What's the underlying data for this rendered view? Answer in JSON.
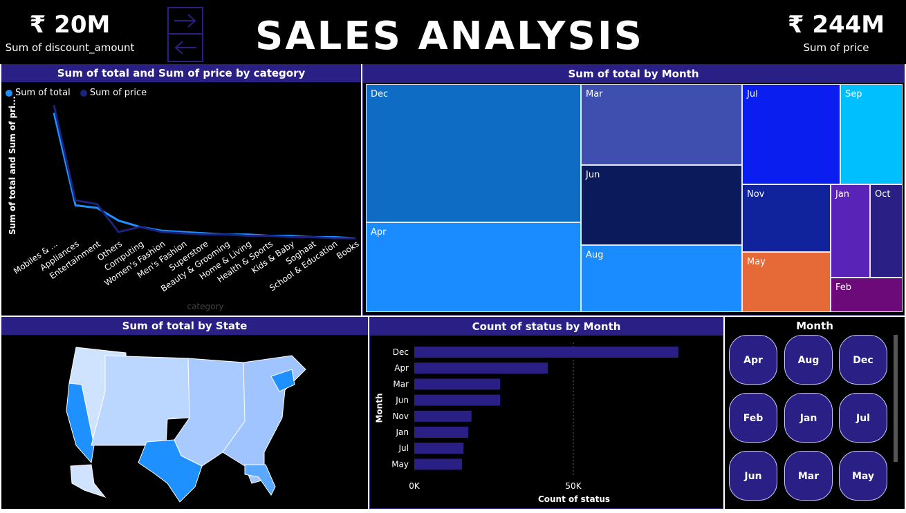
{
  "kpi_left": {
    "value": "₹ 20M",
    "label": "Sum of discount_amount"
  },
  "kpi_right": {
    "value": "₹ 244M",
    "label": "Sum of price"
  },
  "title": "SALES ANALYSIS",
  "colors": {
    "header": "#2a1f85",
    "background": "#000000",
    "series_total": "#1e90ff",
    "series_price": "#1a237e"
  },
  "line_chart": {
    "title": "Sum of total and Sum of price by category",
    "ylabel": "Sum of total and Sum of pri...",
    "xlabel": "category",
    "legend": [
      "Sum of total",
      "Sum of price"
    ]
  },
  "treemap": {
    "title": "Sum of total by Month"
  },
  "map": {
    "title": "Sum of total by State"
  },
  "bar_chart": {
    "title": "Count of status by Month",
    "ylabel": "Month",
    "xlabel": "Count of status"
  },
  "slicer": {
    "title": "Month",
    "options": [
      "Apr",
      "Aug",
      "Dec",
      "Feb",
      "Jan",
      "Jul",
      "Jun",
      "Mar",
      "May"
    ]
  },
  "chart_data": [
    {
      "type": "line",
      "title": "Sum of total and Sum of price by category",
      "xlabel": "category",
      "ylabel": "Sum of total and Sum of pri...",
      "categories": [
        "Mobiles & ...",
        "Appliances",
        "Entertainment",
        "Others",
        "Computing",
        "Women's Fashion",
        "Men's Fashion",
        "Superstore",
        "Beauty & Grooming",
        "Home & Living",
        "Health & Sports",
        "Kids & Baby",
        "Soghaat",
        "School & Education",
        "Books"
      ],
      "series": [
        {
          "name": "Sum of total",
          "values": [
            100,
            27,
            25,
            15,
            10,
            7,
            6,
            5,
            4,
            4,
            3,
            3,
            2,
            2,
            1
          ]
        },
        {
          "name": "Sum of price",
          "values": [
            106,
            31,
            28,
            6,
            10,
            6,
            5,
            4,
            4,
            3,
            3,
            2,
            2,
            1,
            1
          ]
        }
      ],
      "legend_position": "top-left",
      "grid": false
    },
    {
      "type": "treemap",
      "title": "Sum of total by Month",
      "categories": [
        "Dec",
        "Apr",
        "Mar",
        "Jun",
        "Aug",
        "Jul",
        "Sep",
        "Nov",
        "May",
        "Jan",
        "Oct",
        "Feb"
      ],
      "values": [
        62,
        41,
        30,
        31,
        25,
        22,
        15,
        14,
        13,
        9,
        8,
        4
      ]
    },
    {
      "type": "bar",
      "title": "Count of status by Month",
      "xlabel": "Count of status",
      "ylabel": "Month",
      "categories": [
        "Dec",
        "Apr",
        "Mar",
        "Jun",
        "Nov",
        "Jan",
        "Jul",
        "May"
      ],
      "values": [
        83000,
        42000,
        27000,
        27000,
        18000,
        17000,
        15500,
        15000
      ],
      "xticks": [
        "0K",
        "50K"
      ],
      "xlim": [
        0,
        100000
      ]
    }
  ]
}
